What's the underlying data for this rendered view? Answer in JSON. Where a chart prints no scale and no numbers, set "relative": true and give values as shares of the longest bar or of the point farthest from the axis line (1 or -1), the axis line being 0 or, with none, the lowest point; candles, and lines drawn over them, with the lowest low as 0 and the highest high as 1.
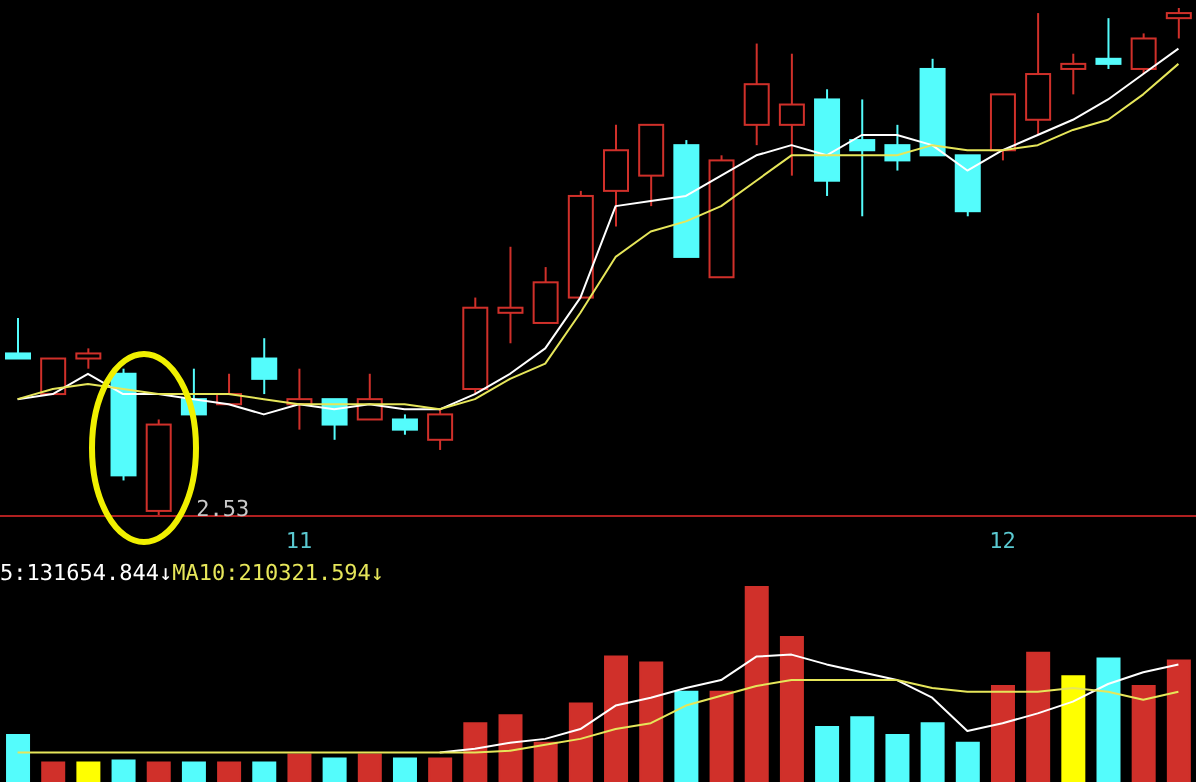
{
  "chart_data": [
    {
      "type": "candlestick",
      "relative": true,
      "categories": [
        null,
        null,
        null,
        null,
        null,
        null,
        null,
        null,
        "11",
        null,
        null,
        null,
        null,
        null,
        null,
        null,
        null,
        null,
        null,
        null,
        null,
        null,
        null,
        null,
        null,
        null,
        null,
        null,
        "12",
        null,
        null,
        null,
        null,
        null
      ],
      "ohlc": [
        [
          0.32,
          0.39,
          0.31,
          0.31
        ],
        [
          0.24,
          0.31,
          0.24,
          0.31
        ],
        [
          0.31,
          0.33,
          0.29,
          0.32
        ],
        [
          0.28,
          0.29,
          0.07,
          0.08
        ],
        [
          0.01,
          0.19,
          0,
          0.18
        ],
        [
          0.23,
          0.29,
          0.2,
          0.2
        ],
        [
          0.22,
          0.28,
          0.22,
          0.24
        ],
        [
          0.31,
          0.35,
          0.24,
          0.27
        ],
        [
          0.22,
          0.29,
          0.17,
          0.23
        ],
        [
          0.23,
          0.23,
          0.15,
          0.18
        ],
        [
          0.19,
          0.28,
          0.19,
          0.23
        ],
        [
          0.19,
          0.2,
          0.16,
          0.17
        ],
        [
          0.15,
          0.21,
          0.13,
          0.2
        ],
        [
          0.25,
          0.43,
          0.24,
          0.41
        ],
        [
          0.4,
          0.53,
          0.34,
          0.41
        ],
        [
          0.38,
          0.49,
          0.38,
          0.46
        ],
        [
          0.43,
          0.64,
          0.43,
          0.63
        ],
        [
          0.64,
          0.77,
          0.57,
          0.72
        ],
        [
          0.67,
          0.77,
          0.61,
          0.77
        ],
        [
          0.73,
          0.74,
          0.51,
          0.51
        ],
        [
          0.47,
          0.71,
          0.47,
          0.7
        ],
        [
          0.77,
          0.93,
          0.73,
          0.85
        ],
        [
          0.77,
          0.91,
          0.67,
          0.81
        ],
        [
          0.82,
          0.84,
          0.63,
          0.66
        ],
        [
          0.74,
          0.82,
          0.59,
          0.72
        ],
        [
          0.73,
          0.77,
          0.68,
          0.7
        ],
        [
          0.88,
          0.9,
          0.71,
          0.71
        ],
        [
          0.71,
          0.71,
          0.59,
          0.6
        ],
        [
          0.72,
          0.83,
          0.7,
          0.83
        ],
        [
          0.78,
          0.99,
          0.75,
          0.87
        ],
        [
          0.88,
          0.91,
          0.83,
          0.89
        ],
        [
          0.9,
          0.98,
          0.88,
          0.89
        ],
        [
          0.88,
          0.95,
          0.87,
          0.94
        ],
        [
          0.98,
          1,
          0.94,
          0.99
        ]
      ],
      "colors": [
        "#54fcfc",
        "#d0302a",
        "#d0302a",
        "#54fcfc",
        "#d0302a",
        "#54fcfc",
        "#d0302a",
        "#54fcfc",
        "#d0302a",
        "#54fcfc",
        "#d0302a",
        "#54fcfc",
        "#d0302a",
        "#d0302a",
        "#d0302a",
        "#d0302a",
        "#d0302a",
        "#d0302a",
        "#d0302a",
        "#54fcfc",
        "#d0302a",
        "#d0302a",
        "#d0302a",
        "#54fcfc",
        "#54fcfc",
        "#54fcfc",
        "#54fcfc",
        "#54fcfc",
        "#d0302a",
        "#d0302a",
        "#d0302a",
        "#54fcfc",
        "#d0302a",
        "#d0302a"
      ],
      "series": [
        {
          "type": "line",
          "color": "#ffffff",
          "values": [
            0.23,
            0.24,
            0.28,
            0.24,
            0.24,
            0.23,
            0.22,
            0.2,
            0.22,
            0.21,
            0.22,
            0.21,
            0.21,
            0.24,
            0.28,
            0.33,
            0.43,
            0.61,
            0.62,
            0.63,
            0.67,
            0.71,
            0.73,
            0.71,
            0.75,
            0.75,
            0.73,
            0.68,
            0.72,
            0.75,
            0.78,
            0.82,
            0.87,
            0.92
          ]
        },
        {
          "type": "line",
          "color": "#e6e65a",
          "values": [
            0.23,
            0.25,
            0.26,
            0.25,
            0.24,
            0.24,
            0.24,
            0.23,
            0.22,
            0.22,
            0.22,
            0.22,
            0.21,
            0.23,
            0.27,
            0.3,
            0.4,
            0.51,
            0.56,
            0.58,
            0.61,
            0.66,
            0.71,
            0.71,
            0.71,
            0.71,
            0.73,
            0.72,
            0.72,
            0.73,
            0.76,
            0.78,
            0.83,
            0.89
          ]
        }
      ],
      "annotations": [
        "2.53"
      ],
      "tick_labels": "x",
      "marker": "none"
    },
    {
      "type": "bar",
      "relative": true,
      "categories": [
        null,
        null,
        null,
        null,
        null,
        null,
        null,
        null,
        null,
        null,
        null,
        null,
        null,
        null,
        null,
        null,
        null,
        null,
        null,
        null,
        null,
        null,
        null,
        null,
        null,
        null,
        null,
        null,
        null,
        null,
        null,
        null,
        null,
        null
      ],
      "series": [
        {
          "type": "bar",
          "colors": [
            "#54fcfc",
            "#d0302a",
            "#ffff00",
            "#54fcfc",
            "#d0302a",
            "#54fcfc",
            "#d0302a",
            "#54fcfc",
            "#d0302a",
            "#54fcfc",
            "#d0302a",
            "#54fcfc",
            "#d0302a",
            "#d0302a",
            "#d0302a",
            "#d0302a",
            "#d0302a",
            "#d0302a",
            "#d0302a",
            "#54fcfc",
            "#d0302a",
            "#d0302a",
            "#d0302a",
            "#54fcfc",
            "#54fcfc",
            "#54fcfc",
            "#54fcfc",
            "#54fcfc",
            "#d0302a",
            "#d0302a",
            "#ffff00",
            "#54fcfc",
            "#d0302a",
            "#d0302a"
          ],
          "values": [
            0.24,
            0.1,
            0.1,
            0.11,
            0.1,
            0.1,
            0.1,
            0.1,
            0.14,
            0.12,
            0.14,
            0.12,
            0.12,
            0.3,
            0.34,
            0.2,
            0.4,
            0.64,
            0.61,
            0.46,
            0.46,
            1,
            0.74,
            0.28,
            0.33,
            0.24,
            0.3,
            0.2,
            0.49,
            0.66,
            0.54,
            0.63,
            0.49,
            0.62
          ]
        },
        {
          "type": "line",
          "name": "5:131654.844↓",
          "color": "#ffffff",
          "values": [
            null,
            null,
            null,
            null,
            null,
            null,
            null,
            null,
            null,
            null,
            null,
            null,
            0.15,
            0.17,
            0.2,
            0.22,
            0.27,
            0.39,
            0.43,
            0.48,
            0.52,
            0.64,
            0.65,
            0.6,
            0.56,
            0.52,
            0.43,
            0.26,
            0.3,
            0.35,
            0.41,
            0.5,
            0.56,
            0.6
          ]
        },
        {
          "type": "line",
          "name": "MA10:210321.594↓",
          "color": "#e6e65a",
          "values": [
            0.15,
            0.15,
            0.15,
            0.15,
            0.15,
            0.15,
            0.15,
            0.15,
            0.15,
            0.15,
            0.15,
            0.15,
            0.15,
            0.15,
            0.16,
            0.19,
            0.22,
            0.27,
            0.3,
            0.39,
            0.44,
            0.49,
            0.52,
            0.52,
            0.52,
            0.52,
            0.48,
            0.46,
            0.46,
            0.46,
            0.48,
            0.46,
            0.42,
            0.46
          ]
        }
      ],
      "legend": "top left",
      "tick_labels": false
    }
  ]
}
